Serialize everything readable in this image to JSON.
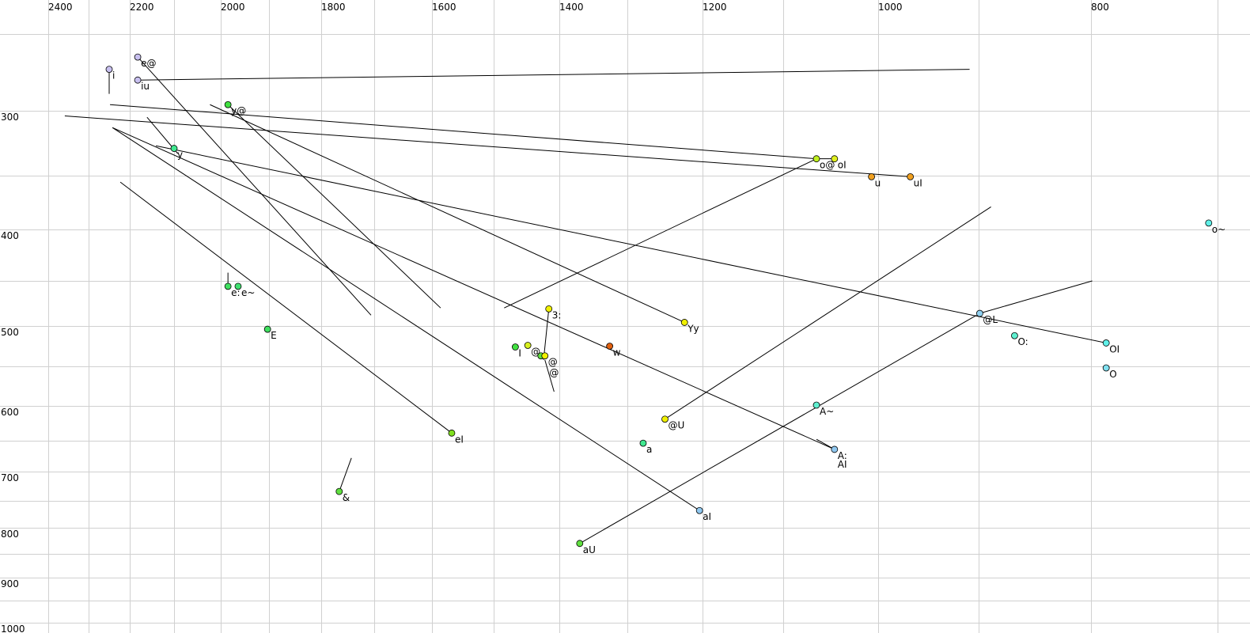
{
  "chart_data": {
    "type": "scatter",
    "title": "",
    "xlabel": "",
    "ylabel": "",
    "x_axis": {
      "reversed": true,
      "position": "top",
      "scale": "nonlinear",
      "range": [
        2400,
        700
      ],
      "tick_labels": [
        "2400",
        "2200",
        "2000",
        "1800",
        "1600",
        "1400",
        "1200",
        "1000",
        "800"
      ],
      "grid_step": 100
    },
    "y_axis": {
      "reversed": true,
      "position": "left",
      "scale": "nonlinear",
      "range": [
        250,
        1000
      ],
      "tick_labels": [
        "300",
        "400",
        "500",
        "600",
        "700",
        "800",
        "900",
        "1000"
      ],
      "grid_step": 50
    },
    "grid": true,
    "grid_color": "#d0d0d0",
    "points": [
      {
        "label": "i",
        "f2": 2250,
        "f1": 273,
        "color": "#c8c0f0"
      },
      {
        "label": "e@",
        "f2": 2182,
        "f1": 265,
        "color": "#c8c0f0"
      },
      {
        "label": "iu",
        "f2": 2182,
        "f1": 280,
        "color": "#c8c0f0"
      },
      {
        "label": "y@",
        "f2": 1985,
        "f1": 296,
        "color": "#40e040"
      },
      {
        "label": "y",
        "f2": 2100,
        "f1": 329,
        "color": "#40e890"
      },
      {
        "label": "e:",
        "f2": 1985,
        "f1": 456,
        "color": "#40e060"
      },
      {
        "label": "e~",
        "f2": 1964,
        "f1": 456,
        "color": "#40e070"
      },
      {
        "label": "E",
        "f2": 1903,
        "f1": 504,
        "color": "#40e060"
      },
      {
        "label": "eI",
        "f2": 1568,
        "f1": 639,
        "color": "#80e020"
      },
      {
        "label": "&",
        "f2": 1766,
        "f1": 734,
        "color": "#60e040"
      },
      {
        "label": "I",
        "f2": 1467,
        "f1": 526,
        "color": "#40e040"
      },
      {
        "label": "@",
        "f2": 1448,
        "f1": 524,
        "color": "#d8f020"
      },
      {
        "label": "",
        "f2": 1428,
        "f1": 537,
        "color": "#60e040"
      },
      {
        "label": "@",
        "f2": 1422,
        "f1": 537,
        "color": "#f0f000",
        "label_color": "#8888a0"
      },
      {
        "label": "@",
        "f2": 1420,
        "f1": 550,
        "color": "none"
      },
      {
        "label": "3:",
        "f2": 1416,
        "f1": 481,
        "color": "#f0f000"
      },
      {
        "label": "w",
        "f2": 1326,
        "f1": 525,
        "color": "#e06010"
      },
      {
        "label": "Yy",
        "f2": 1224,
        "f1": 496,
        "color": "#f0f000"
      },
      {
        "label": "@U",
        "f2": 1250,
        "f1": 619,
        "color": "#f0f000"
      },
      {
        "label": "a",
        "f2": 1279,
        "f1": 654,
        "color": "#40e890"
      },
      {
        "label": "aI",
        "f2": 1204,
        "f1": 768,
        "color": "#90c8f0"
      },
      {
        "label": "aU",
        "f2": 1370,
        "f1": 830,
        "color": "#60e040"
      },
      {
        "label": "A~",
        "f2": 1065,
        "f1": 599,
        "color": "#60f0d0"
      },
      {
        "label": "A:",
        "f2": 1046,
        "f1": 664,
        "color": "#90c8f0"
      },
      {
        "label": "AI",
        "f2": 1046,
        "f1": 664,
        "color": "none"
      },
      {
        "label": "o@",
        "f2": 1065,
        "f1": 337,
        "color": "#c0f020"
      },
      {
        "label": "oI",
        "f2": 1046,
        "f1": 337,
        "color": "#e0f020"
      },
      {
        "label": "u",
        "f2": 1007,
        "f1": 351,
        "color": "#f0a020"
      },
      {
        "label": "uI",
        "f2": 968,
        "f1": 351,
        "color": "#f0a020"
      },
      {
        "label": "o~",
        "f2": 707,
        "f1": 394,
        "color": "#60f0e8"
      },
      {
        "label": "@L",
        "f2": 899,
        "f1": 486,
        "color": "#90d0f0"
      },
      {
        "label": "O:",
        "f2": 868,
        "f1": 512,
        "color": "#60f0d0"
      },
      {
        "label": "OI",
        "f2": 788,
        "f1": 521,
        "color": "#60f0e8"
      },
      {
        "label": "O",
        "f2": 788,
        "f1": 552,
        "color": "#80e0f0"
      }
    ],
    "trajectories": [
      [
        2182,
        280,
        909,
        273
      ],
      [
        2250,
        273,
        2250,
        289
      ],
      [
        2182,
        265,
        1706,
        488
      ],
      [
        2248,
        296,
        1065,
        337
      ],
      [
        2359,
        304,
        968,
        351
      ],
      [
        2023,
        296,
        1224,
        496
      ],
      [
        1985,
        296,
        1586,
        480
      ],
      [
        2161,
        305,
        2092,
        333
      ],
      [
        2141,
        327,
        788,
        521
      ],
      [
        2242,
        313,
        1204,
        768
      ],
      [
        2242,
        313,
        1046,
        664
      ],
      [
        2223,
        356,
        1568,
        639
      ],
      [
        1985,
        442,
        1985,
        456
      ],
      [
        1743,
        678,
        1766,
        734
      ],
      [
        1416,
        481,
        1424,
        542
      ],
      [
        1422,
        542,
        1408,
        582
      ],
      [
        1484,
        480,
        1065,
        337
      ],
      [
        1250,
        619,
        889,
        379
      ],
      [
        1370,
        830,
        902,
        488
      ],
      [
        899,
        486,
        799,
        450
      ],
      [
        1065,
        648,
        1046,
        664
      ],
      [
        1065,
        337,
        1046,
        337
      ]
    ]
  }
}
